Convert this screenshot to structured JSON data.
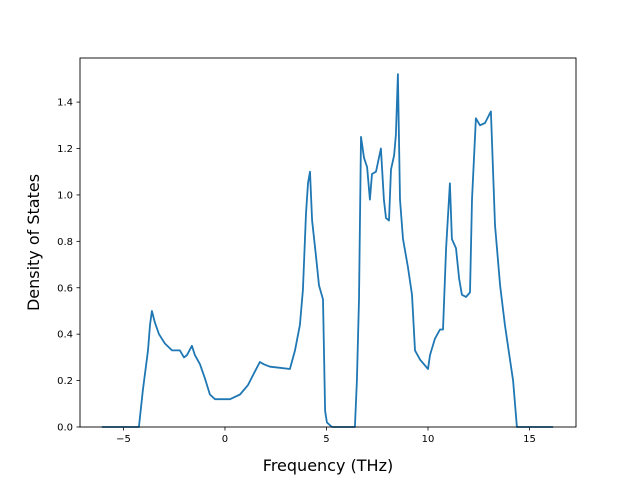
{
  "chart_data": {
    "type": "line",
    "title": "",
    "xlabel": "Frequency (THz)",
    "ylabel": "Density of States",
    "xlim": [
      -7.14,
      17.29
    ],
    "ylim": [
      0,
      1.59
    ],
    "xticks": [
      -5,
      0,
      5,
      10,
      15
    ],
    "xtick_labels": [
      "−5",
      "0",
      "5",
      "10",
      "15"
    ],
    "yticks": [
      0,
      0.2,
      0.4,
      0.6,
      0.8,
      1.0,
      1.2,
      1.4
    ],
    "ytick_labels": [
      "0.0",
      "0.2",
      "0.4",
      "0.6",
      "0.8",
      "1.0",
      "1.2",
      "1.4"
    ],
    "grid": false,
    "series": [
      {
        "name": "DOS",
        "color": "#1f77b4",
        "x": [
          -6.06,
          -4.24,
          -4.04,
          -3.79,
          -3.69,
          -3.6,
          -3.45,
          -3.25,
          -2.96,
          -2.61,
          -2.22,
          -2.02,
          -1.87,
          -1.63,
          -1.48,
          -1.23,
          -0.99,
          -0.74,
          -0.49,
          0.25,
          0.74,
          1.13,
          1.48,
          1.72,
          1.92,
          2.22,
          2.71,
          3.2,
          3.45,
          3.69,
          3.84,
          3.99,
          4.09,
          4.19,
          4.29,
          4.48,
          4.63,
          4.83,
          4.93,
          5.02,
          5.27,
          6.4,
          6.5,
          6.6,
          6.7,
          6.85,
          7.0,
          7.14,
          7.24,
          7.44,
          7.68,
          7.83,
          7.93,
          8.08,
          8.18,
          8.33,
          8.42,
          8.52,
          8.62,
          8.77,
          9.01,
          9.21,
          9.36,
          9.61,
          10.0,
          10.1,
          10.34,
          10.59,
          10.74,
          10.89,
          11.08,
          11.18,
          11.38,
          11.53,
          11.67,
          11.87,
          12.07,
          12.17,
          12.36,
          12.56,
          12.81,
          13.1,
          13.3,
          13.55,
          13.79,
          14.04,
          14.19,
          14.38,
          16.16
        ],
        "y": [
          0,
          0,
          0.16,
          0.33,
          0.44,
          0.5,
          0.45,
          0.4,
          0.36,
          0.33,
          0.33,
          0.3,
          0.31,
          0.35,
          0.31,
          0.27,
          0.21,
          0.14,
          0.12,
          0.12,
          0.14,
          0.18,
          0.24,
          0.28,
          0.27,
          0.26,
          0.255,
          0.25,
          0.33,
          0.44,
          0.59,
          0.92,
          1.05,
          1.1,
          0.89,
          0.74,
          0.61,
          0.55,
          0.07,
          0.02,
          0,
          0,
          0.2,
          0.55,
          1.25,
          1.16,
          1.12,
          0.98,
          1.09,
          1.1,
          1.2,
          0.98,
          0.9,
          0.89,
          1.11,
          1.17,
          1.26,
          1.52,
          0.98,
          0.81,
          0.69,
          0.57,
          0.33,
          0.29,
          0.25,
          0.31,
          0.38,
          0.42,
          0.42,
          0.77,
          1.05,
          0.81,
          0.77,
          0.64,
          0.57,
          0.56,
          0.58,
          0.98,
          1.33,
          1.3,
          1.31,
          1.36,
          0.87,
          0.61,
          0.44,
          0.29,
          0.2,
          0,
          0
        ]
      }
    ]
  }
}
